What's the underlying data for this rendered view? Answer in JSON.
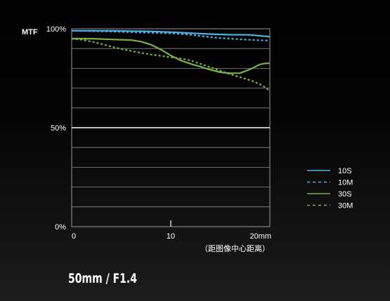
{
  "caption": "50mm / F1.4",
  "chart_data": {
    "type": "line",
    "title": "",
    "ylabel": "MTF",
    "xlabel": "（距图像中心距离）",
    "xlim": [
      0,
      20
    ],
    "ylim": [
      0,
      100
    ],
    "x_ticks": [
      {
        "value": 0,
        "label": "0"
      },
      {
        "value": 10,
        "label": "10"
      },
      {
        "value": 20,
        "label": "20mm"
      }
    ],
    "y_ticks": [
      {
        "value": 100,
        "label": "100%"
      },
      {
        "value": 50,
        "label": "50%"
      },
      {
        "value": 0,
        "label": "0%"
      }
    ],
    "grid": true,
    "legend_position": "right",
    "series": [
      {
        "name": "10S",
        "color": "#4db3e6",
        "dash": "solid",
        "x": [
          0,
          2,
          4,
          6,
          8,
          10,
          12,
          14,
          16,
          18,
          20
        ],
        "y": [
          99,
          99,
          99,
          98.8,
          98.7,
          98.3,
          97.8,
          97.3,
          97,
          96.9,
          96
        ]
      },
      {
        "name": "10M",
        "color": "#4db3e6",
        "dash": "dashed",
        "x": [
          0,
          2,
          4,
          6,
          8,
          10,
          12,
          14,
          16,
          18,
          20
        ],
        "y": [
          99,
          98.8,
          98.6,
          98.3,
          98,
          97.7,
          97,
          95.7,
          95,
          94.4,
          94
        ]
      },
      {
        "name": "30S",
        "color": "#7cb342",
        "dash": "solid",
        "x": [
          0,
          2,
          4,
          6,
          7,
          8,
          9,
          10,
          11,
          12,
          13,
          14,
          15,
          16,
          17,
          18,
          19,
          19.5,
          20
        ],
        "y": [
          95,
          95,
          94.6,
          94.3,
          93.5,
          92,
          89.5,
          86.5,
          84,
          82.3,
          80.8,
          79.3,
          78,
          77.5,
          77.6,
          79.5,
          82,
          82.5,
          82.6
        ]
      },
      {
        "name": "30M",
        "color": "#7cb342",
        "dash": "dashed",
        "x": [
          0,
          1,
          2,
          3,
          4,
          5,
          6,
          7,
          8,
          9,
          10,
          11,
          12,
          13,
          14,
          15,
          16,
          17,
          18,
          19,
          19.5,
          20
        ],
        "y": [
          95,
          94.5,
          93.5,
          92.3,
          91,
          89.8,
          88.8,
          87.8,
          87,
          86.3,
          85.6,
          85,
          84,
          82.3,
          80.5,
          78.8,
          77,
          75.5,
          74,
          72,
          70.5,
          68.5
        ]
      }
    ]
  }
}
